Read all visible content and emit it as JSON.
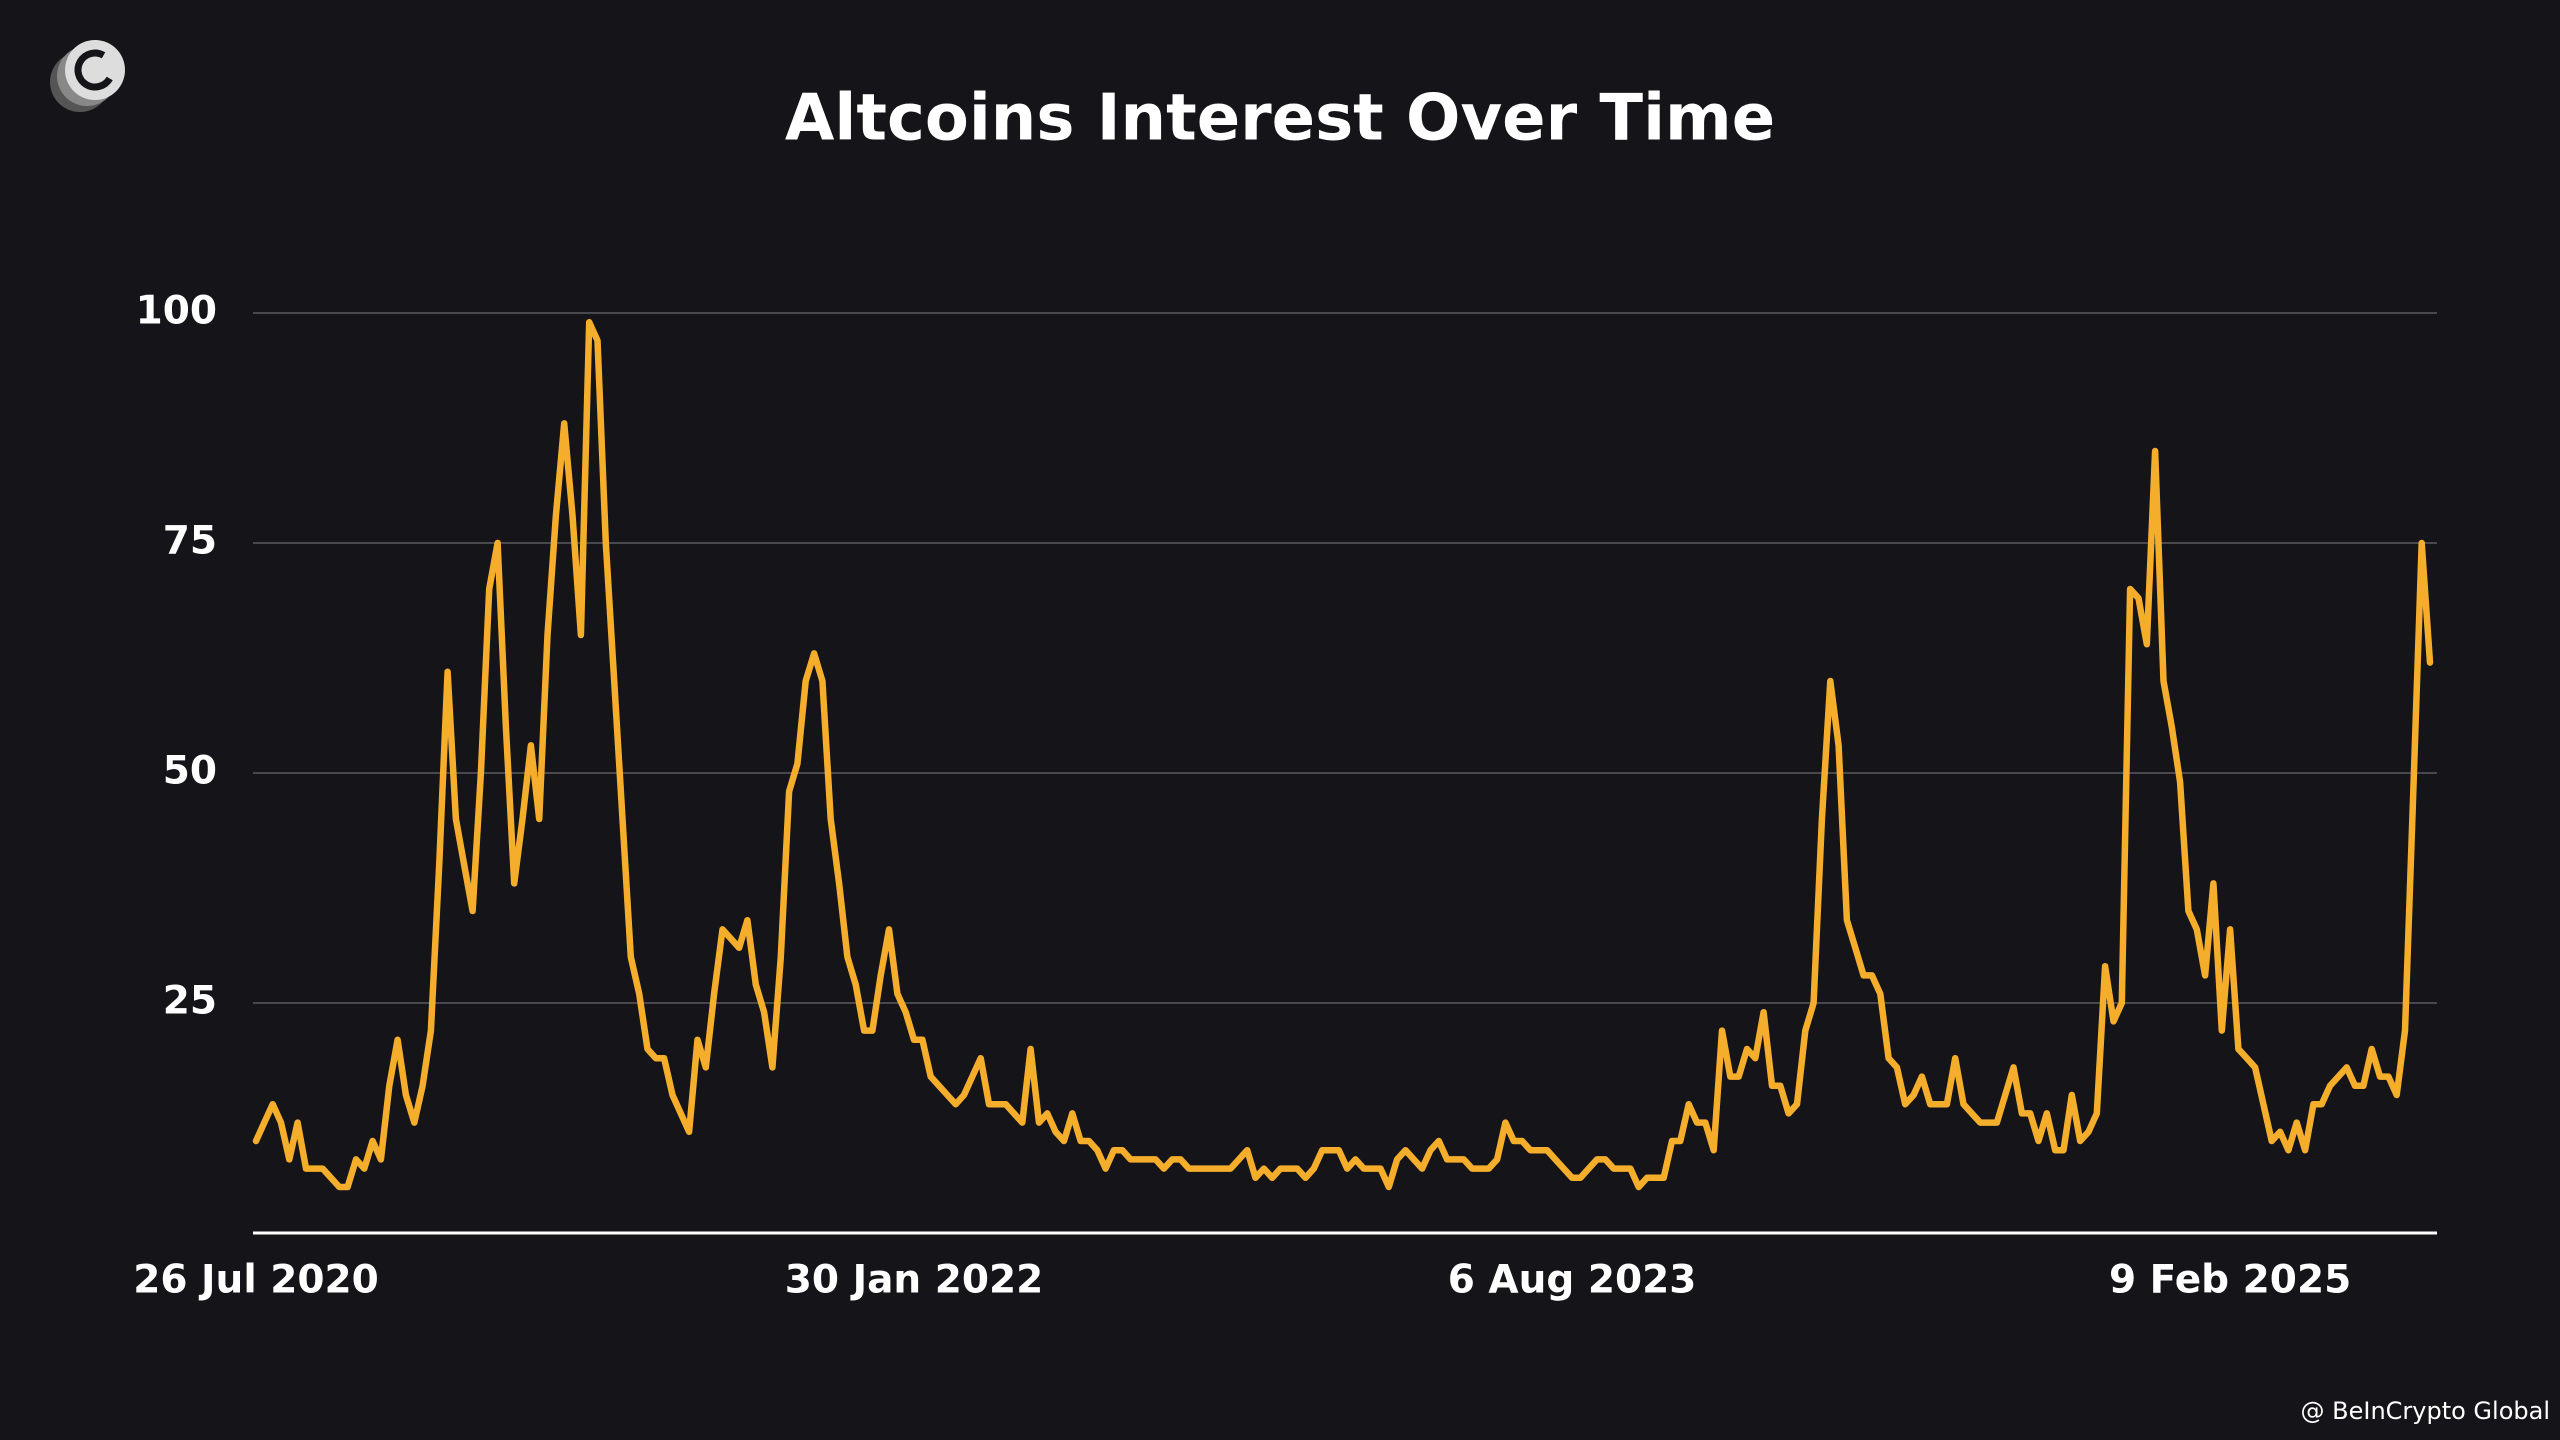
{
  "chart_data": {
    "type": "line",
    "title": "Altcoins Interest Over Time",
    "categories": [
      "26 Jul 2020",
      null,
      null,
      null,
      null,
      null,
      null,
      null,
      null,
      null,
      null,
      null,
      null,
      null,
      null,
      null,
      null,
      null,
      null,
      null,
      null,
      null,
      null,
      null,
      null,
      null,
      null,
      null,
      null,
      null,
      null,
      null,
      null,
      null,
      null,
      null,
      null,
      null,
      null,
      null,
      null,
      null,
      null,
      null,
      null,
      null,
      null,
      null,
      null,
      null,
      null,
      null,
      null,
      null,
      null,
      null,
      null,
      null,
      null,
      null,
      null,
      null,
      null,
      null,
      null,
      null,
      null,
      null,
      null,
      null,
      null,
      null,
      null,
      null,
      null,
      null,
      null,
      null,
      null,
      "30 Jan 2022",
      null,
      null,
      null,
      null,
      null,
      null,
      null,
      null,
      null,
      null,
      null,
      null,
      null,
      null,
      null,
      null,
      null,
      null,
      null,
      null,
      null,
      null,
      null,
      null,
      null,
      null,
      null,
      null,
      null,
      null,
      null,
      null,
      null,
      null,
      null,
      null,
      null,
      null,
      null,
      null,
      null,
      null,
      null,
      null,
      null,
      null,
      null,
      null,
      null,
      null,
      null,
      null,
      null,
      null,
      null,
      null,
      null,
      null,
      null,
      null,
      null,
      null,
      null,
      null,
      null,
      null,
      null,
      null,
      null,
      null,
      null,
      null,
      null,
      null,
      null,
      null,
      null,
      null,
      "6 Aug 2023",
      null,
      null,
      null,
      null,
      null,
      null,
      null,
      null,
      null,
      null,
      null,
      null,
      null,
      null,
      null,
      null,
      null,
      null,
      null,
      null,
      null,
      null,
      null,
      null,
      null,
      null,
      null,
      null,
      null,
      null,
      null,
      null,
      null,
      null,
      null,
      null,
      null,
      null,
      null,
      null,
      null,
      null,
      null,
      null,
      null,
      null,
      null,
      null,
      null,
      null,
      null,
      null,
      null,
      null,
      null,
      null,
      null,
      null,
      null,
      null,
      null,
      null,
      null,
      null,
      null,
      null,
      null,
      null,
      null,
      null,
      null,
      null,
      null,
      null,
      null,
      null,
      null,
      null,
      "9 Feb 2025",
      null,
      null,
      null,
      null,
      null,
      null,
      null,
      null,
      null,
      null,
      null,
      null,
      null,
      null,
      null,
      null,
      null,
      null,
      null,
      null,
      null,
      null,
      null,
      null
    ],
    "values": [
      10,
      12,
      14,
      12,
      8,
      12,
      7,
      7,
      7,
      6,
      5,
      5,
      8,
      7,
      10,
      8,
      16,
      21,
      15,
      12,
      16,
      22,
      40,
      61,
      45,
      40,
      35,
      50,
      70,
      75,
      55,
      38,
      45,
      53,
      45,
      65,
      78,
      88,
      78,
      65,
      99,
      97,
      75,
      60,
      45,
      30,
      26,
      20,
      19,
      19,
      15,
      13,
      11,
      21,
      18,
      26,
      33,
      32,
      31,
      34,
      27,
      24,
      18,
      30,
      48,
      51,
      60,
      63,
      60,
      45,
      38,
      30,
      27,
      22,
      22,
      28,
      33,
      26,
      24,
      21,
      21,
      17,
      16,
      15,
      14,
      15,
      17,
      19,
      14,
      14,
      14,
      13,
      12,
      20,
      12,
      13,
      11,
      10,
      13,
      10,
      10,
      9,
      7,
      9,
      9,
      8,
      8,
      8,
      8,
      7,
      8,
      8,
      7,
      7,
      7,
      7,
      7,
      7,
      8,
      9,
      6,
      7,
      6,
      7,
      7,
      7,
      6,
      7,
      9,
      9,
      9,
      7,
      8,
      7,
      7,
      7,
      5,
      8,
      9,
      8,
      7,
      9,
      10,
      8,
      8,
      8,
      7,
      7,
      7,
      8,
      12,
      10,
      10,
      9,
      9,
      9,
      8,
      7,
      6,
      6,
      7,
      8,
      8,
      7,
      7,
      7,
      5,
      6,
      6,
      6,
      10,
      10,
      14,
      12,
      12,
      9,
      22,
      17,
      17,
      20,
      19,
      24,
      16,
      16,
      13,
      14,
      22,
      25,
      45,
      60,
      53,
      34,
      31,
      28,
      28,
      26,
      19,
      18,
      14,
      15,
      17,
      14,
      14,
      14,
      19,
      14,
      13,
      12,
      12,
      12,
      15,
      18,
      13,
      13,
      10,
      13,
      9,
      9,
      15,
      10,
      11,
      13,
      29,
      23,
      25,
      70,
      69,
      64,
      85,
      60,
      55,
      49,
      35,
      33,
      28,
      38,
      22,
      33,
      20,
      19,
      18,
      14,
      10,
      11,
      9,
      12,
      9,
      14,
      14,
      16,
      17,
      18,
      16,
      16,
      20,
      17,
      17,
      15,
      22,
      48,
      75,
      62
    ],
    "color": "#f5ad2c",
    "ylim": [
      0,
      100
    ],
    "yticks": [
      25,
      50,
      75,
      100
    ],
    "grid": true
  },
  "watermark": "@ BeInCrypto Global"
}
